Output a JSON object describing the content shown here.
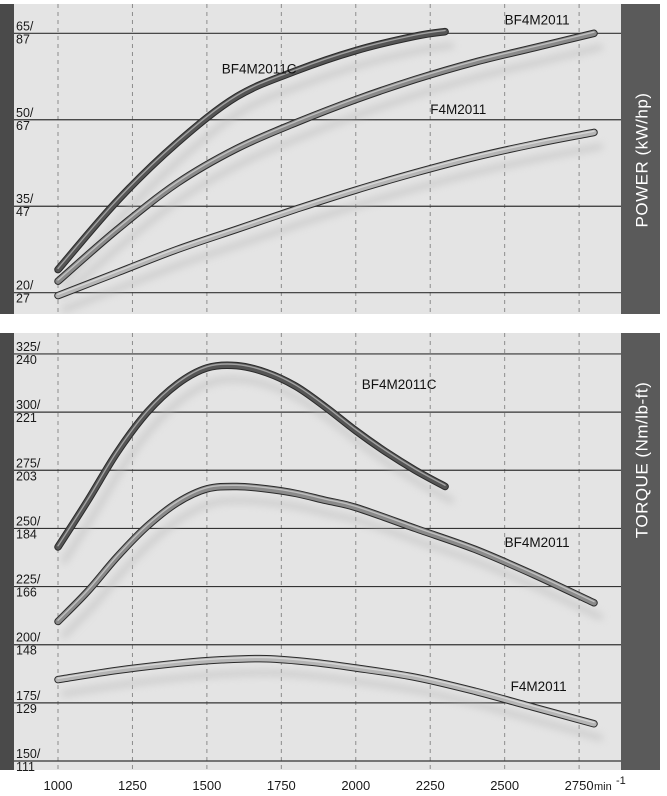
{
  "chart_data": [
    {
      "type": "line",
      "title": "",
      "side_label": "POWER  (kW/hp)",
      "ylabel": "POWER (kW/hp)",
      "xlabel": "min-1",
      "xlim": [
        1000,
        2800
      ],
      "ylim": [
        17,
        68
      ],
      "x_ticks": [
        1000,
        1250,
        1500,
        1750,
        2000,
        2250,
        2500,
        2750
      ],
      "y_ticks": [
        {
          "value": 65,
          "top": "65/",
          "bottom": "87"
        },
        {
          "value": 50,
          "top": "50/",
          "bottom": "67"
        },
        {
          "value": 35,
          "top": "35/",
          "bottom": "47"
        },
        {
          "value": 20,
          "top": "20/",
          "bottom": "27"
        }
      ],
      "grid": true,
      "series": [
        {
          "name": "BF4M2011C",
          "color": "#555555",
          "x": [
            1000,
            1200,
            1400,
            1600,
            1800,
            2000,
            2200,
            2300
          ],
          "y": [
            24,
            36,
            46,
            54,
            58.5,
            62,
            64.5,
            65.3
          ]
        },
        {
          "name": "BF4M2011",
          "color": "#8a8a8a",
          "x": [
            1000,
            1200,
            1400,
            1600,
            1800,
            2000,
            2200,
            2400,
            2600,
            2800
          ],
          "y": [
            22,
            31,
            39,
            45,
            49.5,
            53.5,
            57,
            60,
            62.5,
            65
          ]
        },
        {
          "name": "F4M2011",
          "color": "#b5b5b5",
          "x": [
            1000,
            1200,
            1400,
            1600,
            1800,
            2000,
            2200,
            2400,
            2600,
            2800
          ],
          "y": [
            19.5,
            23.5,
            27.5,
            31,
            34.5,
            37.8,
            40.8,
            43.5,
            45.8,
            47.8
          ]
        }
      ],
      "labels": [
        {
          "series": "BF4M2011C",
          "text": "BF4M2011C",
          "x": 1550,
          "y": 58
        },
        {
          "series": "BF4M2011",
          "text": "BF4M2011",
          "x": 2500,
          "y": 66.5
        },
        {
          "series": "F4M2011",
          "text": "F4M2011",
          "x": 2250,
          "y": 51
        }
      ]
    },
    {
      "type": "line",
      "title": "",
      "side_label": "TORQUE  (Nm/lb-ft)",
      "ylabel": "TORQUE (Nm/lb-ft)",
      "xlabel": "min-1",
      "xlim": [
        1000,
        2800
      ],
      "ylim": [
        147,
        331
      ],
      "x_ticks": [
        1000,
        1250,
        1500,
        1750,
        2000,
        2250,
        2500,
        2750
      ],
      "y_ticks": [
        {
          "value": 325,
          "top": "325/",
          "bottom": "240"
        },
        {
          "value": 300,
          "top": "300/",
          "bottom": "221"
        },
        {
          "value": 275,
          "top": "275/",
          "bottom": "203"
        },
        {
          "value": 250,
          "top": "250/",
          "bottom": "184"
        },
        {
          "value": 225,
          "top": "225/",
          "bottom": "166"
        },
        {
          "value": 200,
          "top": "200/",
          "bottom": "148"
        },
        {
          "value": 175,
          "top": "175/",
          "bottom": "129"
        },
        {
          "value": 150,
          "top": "150/",
          "bottom": "111"
        }
      ],
      "grid": true,
      "series": [
        {
          "name": "BF4M2011C",
          "color": "#555555",
          "x": [
            1000,
            1100,
            1200,
            1300,
            1400,
            1500,
            1600,
            1700,
            1800,
            1900,
            2000,
            2100,
            2200,
            2300
          ],
          "y": [
            242,
            262,
            283,
            300,
            312,
            319,
            320,
            317,
            311,
            302,
            292,
            283,
            275,
            268
          ]
        },
        {
          "name": "BF4M2011",
          "color": "#8a8a8a",
          "x": [
            1000,
            1100,
            1200,
            1300,
            1400,
            1500,
            1600,
            1700,
            1800,
            1900,
            2000,
            2200,
            2400,
            2600,
            2800
          ],
          "y": [
            210,
            223,
            238,
            251,
            261,
            267,
            268,
            267,
            265,
            262,
            259,
            250,
            241,
            230,
            218
          ]
        },
        {
          "name": "F4M2011",
          "color": "#b5b5b5",
          "x": [
            1000,
            1200,
            1400,
            1550,
            1700,
            1850,
            2000,
            2200,
            2400,
            2600,
            2800
          ],
          "y": [
            185,
            189,
            192,
            193.5,
            194,
            192.5,
            190,
            186,
            180,
            173,
            166
          ]
        }
      ],
      "labels": [
        {
          "series": "BF4M2011C",
          "text": "BF4M2011C",
          "x": 2020,
          "y": 310
        },
        {
          "series": "BF4M2011",
          "text": "BF4M2011",
          "x": 2500,
          "y": 242
        },
        {
          "series": "F4M2011",
          "text": "F4M2011",
          "x": 2520,
          "y": 180
        }
      ]
    }
  ],
  "x_unit": "min",
  "x_unit_sup": "-1"
}
